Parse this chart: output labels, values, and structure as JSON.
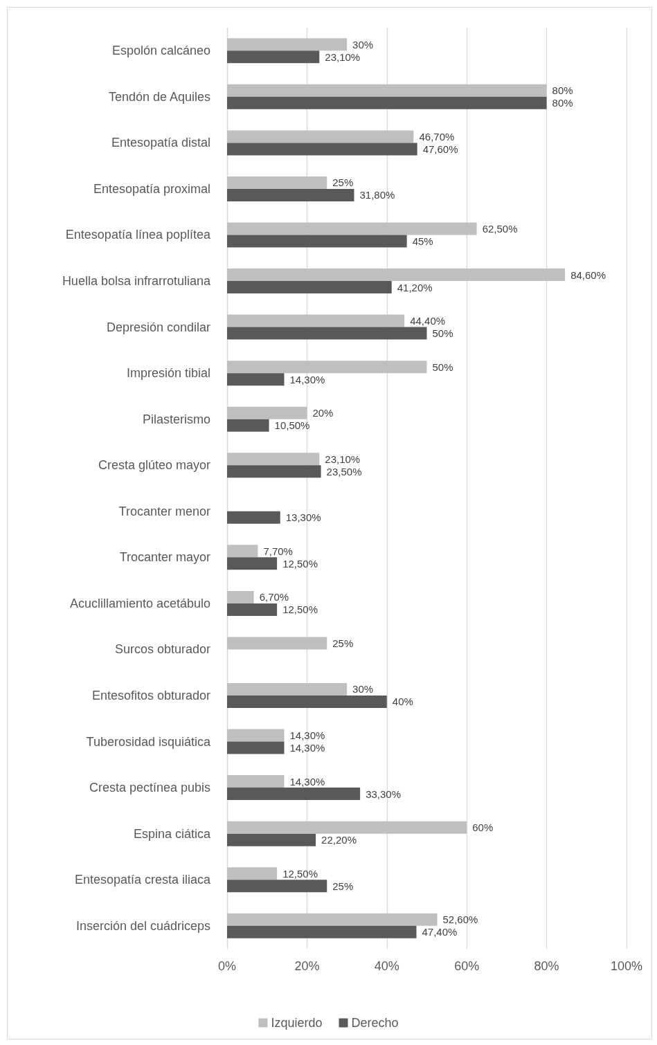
{
  "chart_data": {
    "type": "bar",
    "orientation": "horizontal",
    "categories": [
      "Espolón calcáneo",
      "Tendón de Aquiles",
      "Entesopatía distal",
      "Entesopatía proximal",
      "Entesopatía línea poplítea",
      "Huella bolsa infrarrotuliana",
      "Depresión condilar",
      "Impresión tibial",
      "Pilasterismo",
      "Cresta glúteo mayor",
      "Trocanter menor",
      "Trocanter mayor",
      "Acuclillamiento acetábulo",
      "Surcos obturador",
      "Entesofitos obturador",
      "Tuberosidad isquiática",
      "Cresta pectínea pubis",
      "Espina ciática",
      "Entesopatía cresta iliaca",
      "Inserción del cuádriceps"
    ],
    "series": [
      {
        "name": "Izquierdo",
        "color": "#bfbfbf",
        "values": [
          30,
          80,
          46.7,
          25,
          62.5,
          84.6,
          44.4,
          50,
          20,
          23.1,
          null,
          7.7,
          6.7,
          25,
          30,
          14.3,
          14.3,
          60,
          12.5,
          52.6
        ],
        "value_labels": [
          "30%",
          "80%",
          "46,70%",
          "25%",
          "62,50%",
          "84,60%",
          "44,40%",
          "50%",
          "20%",
          "23,10%",
          null,
          "7,70%",
          "6,70%",
          "25%",
          "30%",
          "14,30%",
          "14,30%",
          "60%",
          "12,50%",
          "52,60%"
        ]
      },
      {
        "name": "Derecho",
        "color": "#595959",
        "values": [
          23.1,
          80,
          47.6,
          31.8,
          45,
          41.2,
          50,
          14.3,
          10.5,
          23.5,
          13.3,
          12.5,
          12.5,
          null,
          40,
          14.3,
          33.3,
          22.2,
          25,
          47.4
        ],
        "value_labels": [
          "23,10%",
          "80%",
          "47,60%",
          "31,80%",
          "45%",
          "41,20%",
          "50%",
          "14,30%",
          "10,50%",
          "23,50%",
          "13,30%",
          "12,50%",
          "12,50%",
          null,
          "40%",
          "14,30%",
          "33,30%",
          "22,20%",
          "25%",
          "47,40%"
        ]
      }
    ],
    "xlim": [
      0,
      100
    ],
    "xticks": [
      {
        "value": 0,
        "label": "0%"
      },
      {
        "value": 20,
        "label": "20%"
      },
      {
        "value": 40,
        "label": "40%"
      },
      {
        "value": 60,
        "label": "60%"
      },
      {
        "value": 80,
        "label": "80%"
      },
      {
        "value": 100,
        "label": "100%"
      }
    ],
    "grid": "x",
    "legend": "bottom"
  }
}
